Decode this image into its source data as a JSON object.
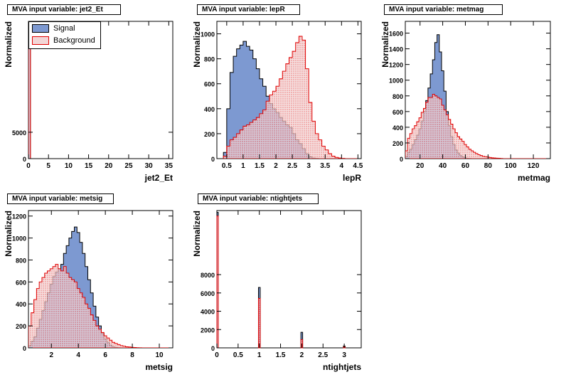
{
  "legend": {
    "signal_label": "Signal",
    "background_label": "Background",
    "signal_fill": "#7d99d1",
    "signal_line": "#000000",
    "background_fill": "#f2d6d6",
    "background_line": "#e00000"
  },
  "chart_data": [
    {
      "type": "histogram",
      "title": "MVA input variable: jet2_Et",
      "xlabel": "jet2_Et",
      "ylabel": "Normalized",
      "xlim": [
        0,
        36
      ],
      "xticks": [
        0,
        5,
        10,
        15,
        20,
        25,
        30,
        35
      ],
      "yticks": [
        0,
        5000
      ],
      "ylim": [
        0,
        26000
      ],
      "bin_width": 0.5,
      "series": [
        {
          "name": "Signal",
          "values": [
            22000,
            0
          ]
        },
        {
          "name": "Background",
          "values": [
            22300,
            0
          ]
        }
      ]
    },
    {
      "type": "histogram",
      "title": "MVA input variable: lepR",
      "xlabel": "lepR",
      "ylabel": "Normalized",
      "xlim": [
        0.2,
        4.6
      ],
      "xticks": [
        0.5,
        1,
        1.5,
        2,
        2.5,
        3,
        3.5,
        4,
        4.5
      ],
      "yticks": [
        0,
        200,
        400,
        600,
        800,
        1000
      ],
      "ylim": [
        0,
        1100
      ],
      "bin_width": 0.1,
      "x_start": 0.4,
      "series": [
        {
          "name": "Signal",
          "values": [
            50,
            400,
            690,
            820,
            880,
            910,
            940,
            900,
            870,
            800,
            720,
            640,
            580,
            500,
            440,
            400,
            370,
            330,
            300,
            270,
            250,
            200,
            150,
            120,
            80,
            40,
            15,
            5,
            2,
            0,
            0,
            0,
            0,
            0,
            0,
            0,
            0,
            0,
            0,
            0,
            0
          ]
        },
        {
          "name": "Background",
          "values": [
            20,
            100,
            150,
            170,
            200,
            230,
            260,
            270,
            290,
            310,
            330,
            360,
            390,
            460,
            510,
            540,
            580,
            640,
            700,
            760,
            810,
            860,
            930,
            980,
            950,
            720,
            450,
            300,
            200,
            150,
            100,
            70,
            40,
            20,
            10,
            5,
            2,
            0,
            0,
            0,
            0
          ]
        }
      ]
    },
    {
      "type": "histogram",
      "title": "MVA input variable: metmag",
      "xlabel": "metmag",
      "ylabel": "Normalized",
      "xlim": [
        7,
        135
      ],
      "xticks": [
        20,
        40,
        60,
        80,
        100,
        120
      ],
      "yticks": [
        0,
        200,
        400,
        600,
        800,
        1000,
        1200,
        1400,
        1600
      ],
      "ylim": [
        0,
        1750
      ],
      "bin_width": 2,
      "x_start": 7,
      "series": [
        {
          "name": "Signal",
          "values": [
            30,
            80,
            120,
            180,
            240,
            300,
            380,
            480,
            600,
            740,
            900,
            1080,
            1260,
            1480,
            1580,
            1360,
            1120,
            860,
            600,
            420,
            280,
            180,
            110,
            70,
            40,
            20,
            10,
            5,
            2,
            0,
            0,
            0,
            0,
            0,
            0,
            0,
            0,
            0,
            0,
            0,
            0,
            0,
            0,
            0,
            0,
            0,
            0,
            0,
            0,
            0,
            0,
            0,
            0,
            0,
            0,
            0,
            0,
            0,
            0,
            0,
            0,
            0,
            0,
            0
          ]
        },
        {
          "name": "Background",
          "values": [
            100,
            260,
            320,
            380,
            420,
            470,
            520,
            590,
            640,
            720,
            780,
            780,
            820,
            800,
            780,
            760,
            680,
            620,
            560,
            500,
            440,
            380,
            330,
            280,
            250,
            220,
            180,
            150,
            120,
            100,
            80,
            65,
            50,
            40,
            30,
            25,
            20,
            15,
            10,
            8,
            6,
            4,
            2,
            0,
            0,
            0,
            0,
            0,
            0,
            0,
            0,
            0,
            0,
            0,
            0,
            0,
            0,
            0,
            0,
            0,
            0,
            0,
            0,
            0
          ]
        }
      ]
    },
    {
      "type": "histogram",
      "title": "MVA input variable: metsig",
      "xlabel": "metsig",
      "ylabel": "Normalized",
      "xlim": [
        0.3,
        11
      ],
      "xticks": [
        2,
        4,
        6,
        8,
        10
      ],
      "yticks": [
        0,
        200,
        400,
        600,
        800,
        1000,
        1200
      ],
      "ylim": [
        0,
        1250
      ],
      "bin_width": 0.2,
      "x_start": 0.3,
      "series": [
        {
          "name": "Signal",
          "values": [
            20,
            60,
            100,
            180,
            260,
            340,
            420,
            500,
            580,
            650,
            690,
            720,
            760,
            860,
            930,
            1000,
            1060,
            1100,
            1050,
            960,
            860,
            740,
            620,
            500,
            380,
            280,
            200,
            130,
            80,
            50,
            25,
            10,
            5,
            2,
            0,
            0,
            0,
            0,
            0,
            0,
            0,
            0,
            0,
            0,
            0,
            0,
            0,
            0,
            0,
            0,
            0,
            0,
            0
          ]
        },
        {
          "name": "Background",
          "values": [
            200,
            320,
            440,
            540,
            600,
            640,
            680,
            700,
            720,
            740,
            760,
            720,
            700,
            740,
            680,
            640,
            620,
            600,
            540,
            500,
            460,
            400,
            360,
            300,
            250,
            200,
            170,
            140,
            110,
            90,
            70,
            50,
            40,
            30,
            20,
            15,
            10,
            8,
            5,
            3,
            2,
            1,
            0,
            0,
            0,
            0,
            0,
            0,
            0,
            0,
            0,
            0,
            0,
            0
          ]
        }
      ]
    },
    {
      "type": "histogram",
      "title": "MVA input variable: ntightjets",
      "xlabel": "ntightjets",
      "ylabel": "Normalized",
      "xlim": [
        0,
        3.4
      ],
      "xticks": [
        0,
        0.5,
        1,
        1.5,
        2,
        2.5,
        3
      ],
      "yticks": [
        0,
        2000,
        4000,
        6000,
        8000
      ],
      "ylim": [
        0,
        15000
      ],
      "spikes": true,
      "series": [
        {
          "name": "Signal",
          "points": [
            [
              0,
              14800
            ],
            [
              1,
              6600
            ],
            [
              2,
              1700
            ],
            [
              3,
              200
            ]
          ]
        },
        {
          "name": "Background",
          "points": [
            [
              0,
              14400
            ],
            [
              1,
              5400
            ],
            [
              2,
              900
            ],
            [
              3,
              100
            ]
          ]
        }
      ]
    }
  ]
}
